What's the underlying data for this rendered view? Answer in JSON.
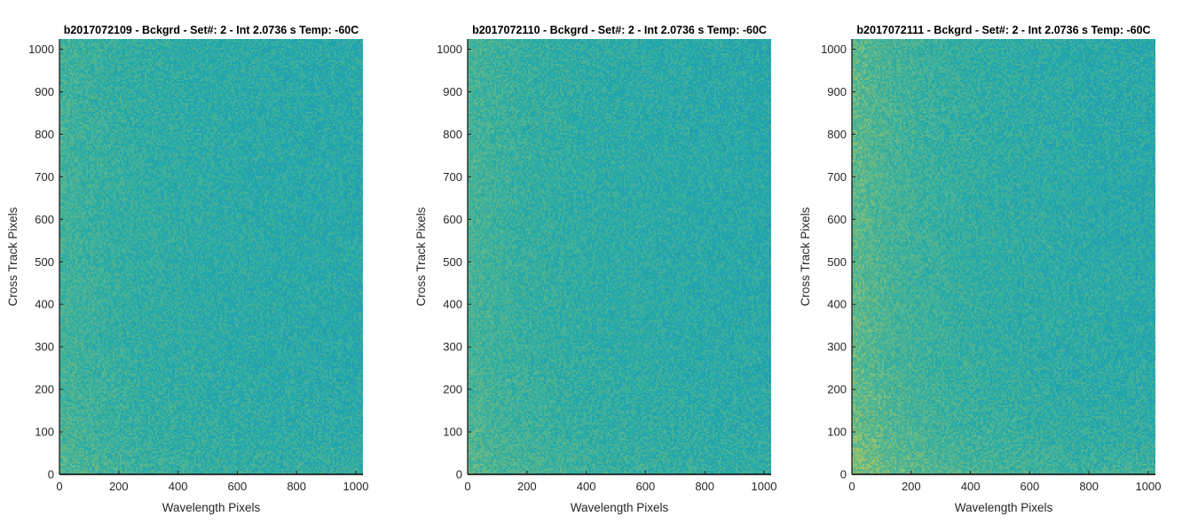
{
  "figure": {
    "colors": {
      "base": "#23a9a9",
      "warm": "#7cbf7c",
      "bright": "#c7c84c",
      "cool": "#1f8fc0",
      "axis": "#1e1e1e",
      "text": "#262626"
    }
  },
  "chart_data": [
    {
      "type": "heatmap",
      "title": "b2017072109 - Bckgrd - Set#: 2 - Int 2.0736 s Temp: -60C",
      "xlabel": "Wavelength Pixels",
      "ylabel": "Cross Track Pixels",
      "xlim": [
        0,
        1024
      ],
      "ylim": [
        0,
        1024
      ],
      "xticks": [
        0,
        200,
        400,
        600,
        800,
        1000
      ],
      "yticks": [
        0,
        100,
        200,
        300,
        400,
        500,
        600,
        700,
        800,
        900,
        1000
      ],
      "grid": false,
      "colorbar": false,
      "warm_edge": 0.35,
      "noise": 0.5,
      "seed": 11
    },
    {
      "type": "heatmap",
      "title": "b2017072110 - Bckgrd - Set#: 2 - Int 2.0736 s Temp: -60C",
      "xlabel": "Wavelength Pixels",
      "ylabel": "Cross Track Pixels",
      "xlim": [
        0,
        1024
      ],
      "ylim": [
        0,
        1024
      ],
      "xticks": [
        0,
        200,
        400,
        600,
        800,
        1000
      ],
      "yticks": [
        0,
        100,
        200,
        300,
        400,
        500,
        600,
        700,
        800,
        900,
        1000
      ],
      "grid": false,
      "colorbar": false,
      "warm_edge": 0.4,
      "noise": 0.5,
      "seed": 23
    },
    {
      "type": "heatmap",
      "title": "b2017072111 - Bckgrd - Set#: 2 - Int 2.0736 s Temp: -60C",
      "xlabel": "Wavelength Pixels",
      "ylabel": "Cross Track Pixels",
      "xlim": [
        0,
        1024
      ],
      "ylim": [
        0,
        1024
      ],
      "xticks": [
        0,
        200,
        400,
        600,
        800,
        1000
      ],
      "yticks": [
        0,
        100,
        200,
        300,
        400,
        500,
        600,
        700,
        800,
        900,
        1000
      ],
      "grid": false,
      "colorbar": false,
      "warm_edge": 0.6,
      "noise": 0.5,
      "seed": 37
    }
  ]
}
